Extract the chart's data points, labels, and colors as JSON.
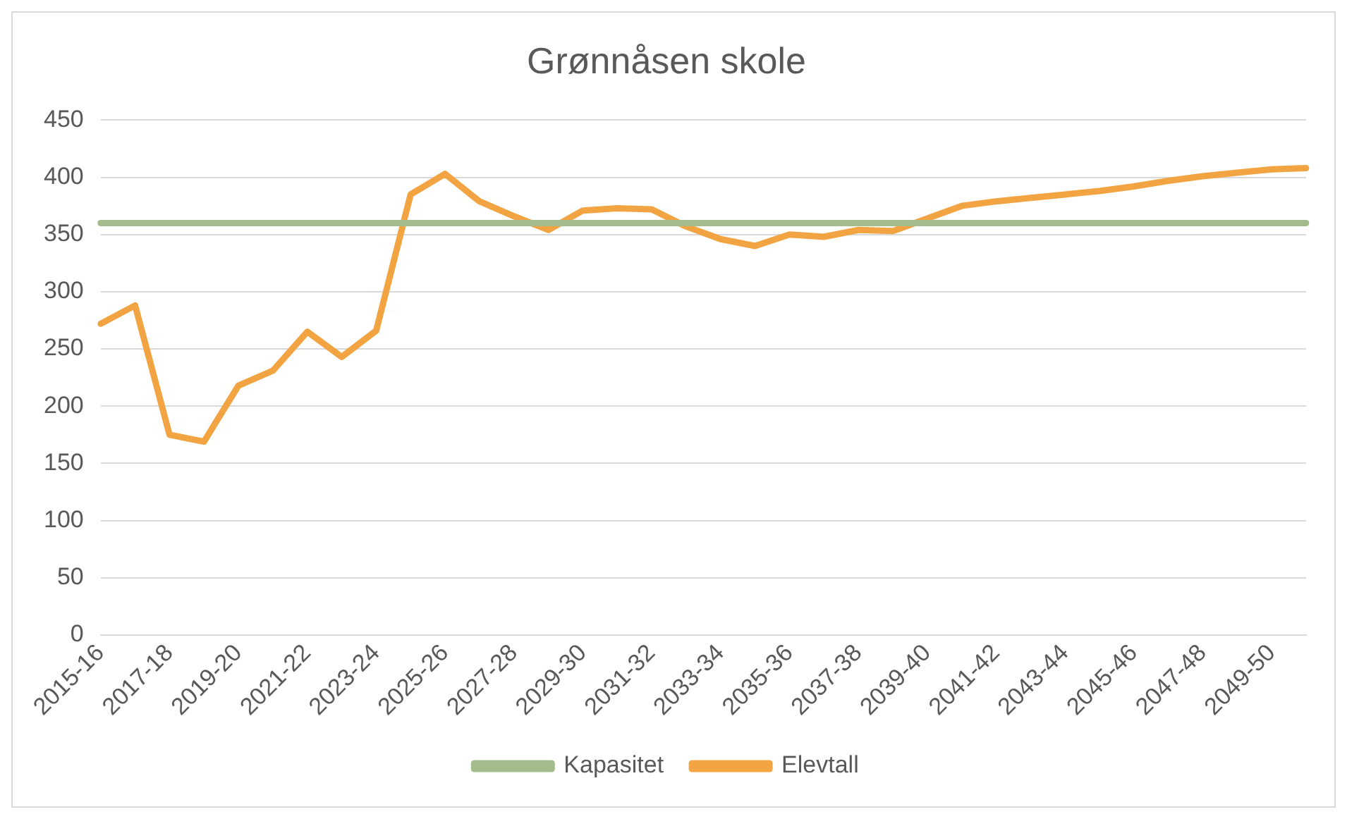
{
  "chart_data": {
    "type": "line",
    "title": "Grønnåsen skole",
    "categories": [
      "2015-16",
      null,
      "2017-18",
      null,
      "2019-20",
      null,
      "2021-22",
      null,
      "2023-24",
      null,
      "2025-26",
      null,
      "2027-28",
      null,
      "2029-30",
      null,
      "2031-32",
      null,
      "2033-34",
      null,
      "2035-36",
      null,
      "2037-38",
      null,
      "2039-40",
      null,
      "2041-42",
      null,
      "2043-44",
      null,
      "2045-46",
      null,
      "2047-48",
      null,
      "2049-50",
      null
    ],
    "series": [
      {
        "name": "Kapasitet",
        "color": "#a2bc8b",
        "values": [
          360,
          360,
          360,
          360,
          360,
          360,
          360,
          360,
          360,
          360,
          360,
          360,
          360,
          360,
          360,
          360,
          360,
          360,
          360,
          360,
          360,
          360,
          360,
          360,
          360,
          360,
          360,
          360,
          360,
          360,
          360,
          360,
          360,
          360,
          360,
          360
        ]
      },
      {
        "name": "Elevtall",
        "color": "#f3a442",
        "values": [
          272,
          288,
          175,
          169,
          218,
          231,
          265,
          243,
          266,
          385,
          403,
          379,
          366,
          354,
          371,
          373,
          372,
          357,
          346,
          340,
          350,
          348,
          354,
          353,
          364,
          375,
          379,
          382,
          385,
          388,
          392,
          397,
          401,
          404,
          407,
          408
        ]
      }
    ],
    "ylim": [
      0,
      450
    ],
    "yticks": [
      0,
      50,
      100,
      150,
      200,
      250,
      300,
      350,
      400,
      450
    ],
    "grid": "y",
    "legend": "bottom",
    "marker": "none",
    "line_style": "solid"
  }
}
